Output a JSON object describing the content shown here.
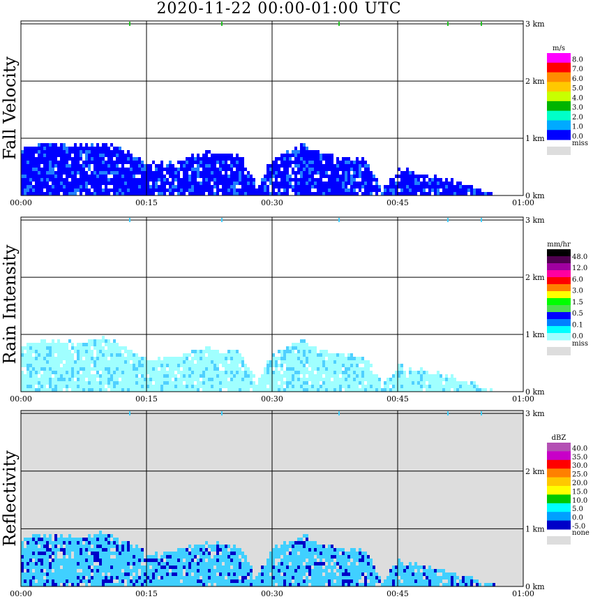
{
  "title": "2020-11-22   00:00-01:00 UTC",
  "x_ticks": [
    "00:00",
    "00:15",
    "00:30",
    "00:45",
    "01:00"
  ],
  "y_ticks": [
    "0 km",
    "1 km",
    "2 km",
    "3 km"
  ],
  "chart_data": [
    {
      "type": "heatmap",
      "title": "Fall Velocity",
      "xlabel": "",
      "ylabel": "Fall Velocity",
      "xlim": [
        "00:00",
        "01:00"
      ],
      "ylim_km": [
        0,
        3
      ],
      "grid": true,
      "background": "#ffffff",
      "colorbar": {
        "unit": "m/s",
        "levels": [
          "8.0",
          "7.0",
          "6.0",
          "5.0",
          "4.0",
          "3.0",
          "2.0",
          "1.0",
          "0.0"
        ],
        "colors": [
          "#ff00ff",
          "#ff0000",
          "#ff8c00",
          "#ffc800",
          "#c8ff00",
          "#00b400",
          "#00ffc8",
          "#00aaff",
          "#0000ff"
        ],
        "miss_label": "miss",
        "miss_color": "#dddddd"
      },
      "dominant_color": "#0000ff",
      "secondary_color": "#2080ff",
      "echo_profile": [
        {
          "t": 0.0,
          "top_km": 0.8
        },
        {
          "t": 2.0,
          "top_km": 0.9
        },
        {
          "t": 4.5,
          "top_km": 0.88
        },
        {
          "t": 7.0,
          "top_km": 0.85
        },
        {
          "t": 9.5,
          "top_km": 0.95
        },
        {
          "t": 12.0,
          "top_km": 0.8
        },
        {
          "t": 15.0,
          "top_km": 0.55
        },
        {
          "t": 18.0,
          "top_km": 0.6
        },
        {
          "t": 22.0,
          "top_km": 0.75
        },
        {
          "t": 26.0,
          "top_km": 0.7
        },
        {
          "t": 28.0,
          "top_km": 0.15
        },
        {
          "t": 30.0,
          "top_km": 0.65
        },
        {
          "t": 33.5,
          "top_km": 0.88
        },
        {
          "t": 36.0,
          "top_km": 0.7
        },
        {
          "t": 41.0,
          "top_km": 0.6
        },
        {
          "t": 43.0,
          "top_km": 0.1
        },
        {
          "t": 45.0,
          "top_km": 0.45
        },
        {
          "t": 50.0,
          "top_km": 0.3
        },
        {
          "t": 55.0,
          "top_km": 0.08
        },
        {
          "t": 57.0,
          "top_km": 0.0
        }
      ],
      "markers_3km": [
        "00:13",
        "00:24",
        "00:38",
        "00:51",
        "00:55"
      ]
    },
    {
      "type": "heatmap",
      "title": "Rain Intensity",
      "xlabel": "",
      "ylabel": "Rain Intensity",
      "xlim": [
        "00:00",
        "01:00"
      ],
      "ylim_km": [
        0,
        3
      ],
      "grid": true,
      "background": "#ffffff",
      "colorbar": {
        "unit": "mm/hr",
        "levels": [
          "48.0",
          "12.0",
          "6.0",
          "3.0",
          "1.5",
          "0.5",
          "0.1",
          "0.0"
        ],
        "colors": [
          "#000000",
          "#500050",
          "#a000a0",
          "#ff00a0",
          "#ff0000",
          "#ff8000",
          "#ffff00",
          "#00ff00",
          "#50dc50",
          "#0000ff",
          "#0080ff",
          "#00ffff",
          "#a0ffff"
        ],
        "miss_label": "miss",
        "miss_color": "#dddddd"
      },
      "dominant_color": "#a0ffff",
      "secondary_color": "#50d0ff",
      "echo_profile": [
        {
          "t": 0.0,
          "top_km": 0.8
        },
        {
          "t": 2.0,
          "top_km": 0.9
        },
        {
          "t": 4.5,
          "top_km": 0.88
        },
        {
          "t": 7.0,
          "top_km": 0.85
        },
        {
          "t": 9.5,
          "top_km": 0.95
        },
        {
          "t": 12.0,
          "top_km": 0.8
        },
        {
          "t": 15.0,
          "top_km": 0.55
        },
        {
          "t": 18.0,
          "top_km": 0.6
        },
        {
          "t": 22.0,
          "top_km": 0.75
        },
        {
          "t": 26.0,
          "top_km": 0.7
        },
        {
          "t": 28.0,
          "top_km": 0.15
        },
        {
          "t": 30.0,
          "top_km": 0.65
        },
        {
          "t": 33.5,
          "top_km": 0.88
        },
        {
          "t": 36.0,
          "top_km": 0.7
        },
        {
          "t": 41.0,
          "top_km": 0.6
        },
        {
          "t": 43.0,
          "top_km": 0.1
        },
        {
          "t": 45.0,
          "top_km": 0.45
        },
        {
          "t": 50.0,
          "top_km": 0.3
        },
        {
          "t": 55.0,
          "top_km": 0.08
        },
        {
          "t": 57.0,
          "top_km": 0.0
        }
      ],
      "markers_3km": [
        "00:13",
        "00:24",
        "00:38",
        "00:51",
        "00:55"
      ]
    },
    {
      "type": "heatmap",
      "title": "Reflectivity",
      "xlabel": "",
      "ylabel": "Reflectivity",
      "xlim": [
        "00:00",
        "01:00"
      ],
      "ylim_km": [
        0,
        3
      ],
      "grid": true,
      "background": "#dddddd",
      "colorbar": {
        "unit": "dBZ",
        "levels": [
          "40.0",
          "35.0",
          "30.0",
          "25.0",
          "20.0",
          "15.0",
          "10.0",
          "5.0",
          "0.0",
          "-5.0"
        ],
        "colors": [
          "#b450b4",
          "#c800c8",
          "#ff0000",
          "#ff8000",
          "#ffc800",
          "#ffff00",
          "#00c800",
          "#00ffff",
          "#00a0ff",
          "#0000c8"
        ],
        "miss_label": "none",
        "miss_color": "#dddddd"
      },
      "dominant_color": "#40d0ff",
      "secondary_color": "#0000c8",
      "echo_profile": [
        {
          "t": 0.0,
          "top_km": 0.8
        },
        {
          "t": 2.0,
          "top_km": 0.9
        },
        {
          "t": 4.5,
          "top_km": 0.88
        },
        {
          "t": 7.0,
          "top_km": 0.85
        },
        {
          "t": 9.5,
          "top_km": 0.95
        },
        {
          "t": 12.0,
          "top_km": 0.8
        },
        {
          "t": 15.0,
          "top_km": 0.55
        },
        {
          "t": 18.0,
          "top_km": 0.6
        },
        {
          "t": 22.0,
          "top_km": 0.75
        },
        {
          "t": 26.0,
          "top_km": 0.7
        },
        {
          "t": 28.0,
          "top_km": 0.15
        },
        {
          "t": 30.0,
          "top_km": 0.65
        },
        {
          "t": 33.5,
          "top_km": 0.88
        },
        {
          "t": 36.0,
          "top_km": 0.7
        },
        {
          "t": 41.0,
          "top_km": 0.6
        },
        {
          "t": 43.0,
          "top_km": 0.1
        },
        {
          "t": 45.0,
          "top_km": 0.45
        },
        {
          "t": 50.0,
          "top_km": 0.3
        },
        {
          "t": 55.0,
          "top_km": 0.08
        },
        {
          "t": 57.0,
          "top_km": 0.0
        }
      ],
      "markers_3km": [
        "00:13",
        "00:24",
        "00:38",
        "00:51",
        "00:55"
      ]
    }
  ]
}
